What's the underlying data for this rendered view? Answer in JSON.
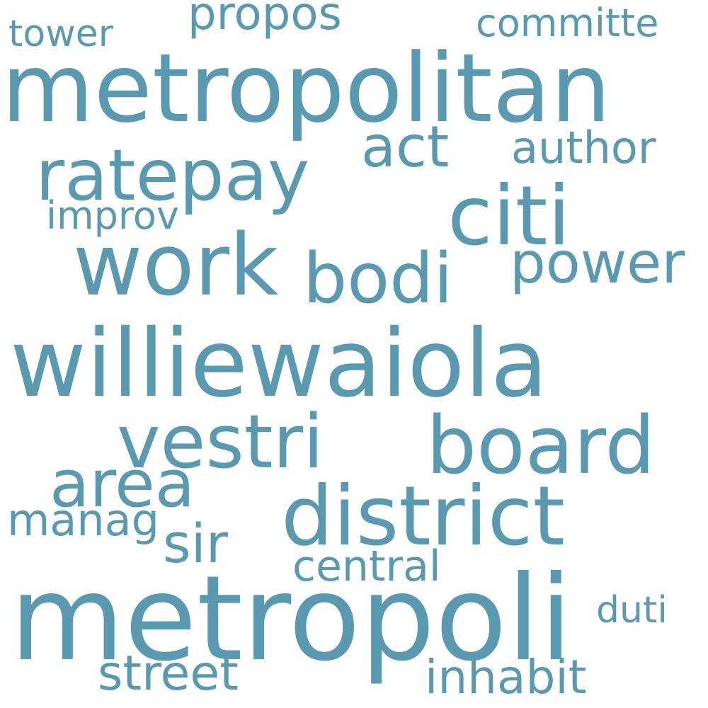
{
  "cloud": {
    "color": "#5a9ab0",
    "background": "#ffffff",
    "words": {
      "tower": "tower",
      "propos": "propos",
      "committe": "committe",
      "metropolitan": "metropolitan",
      "ratepay": "ratepay",
      "act": "act",
      "author": "author",
      "citi": "citi",
      "improv": "improv",
      "work": "work",
      "bodi": "bodi",
      "power": "power",
      "williewaiola": "williewaiola",
      "vestri": "vestri",
      "board": "board",
      "area": "area",
      "district": "district",
      "manag": "manag",
      "sir": "sir",
      "central": "central",
      "metropoli": "metropoli",
      "duti": "duti",
      "street": "street",
      "inhabit": "inhabit"
    }
  }
}
